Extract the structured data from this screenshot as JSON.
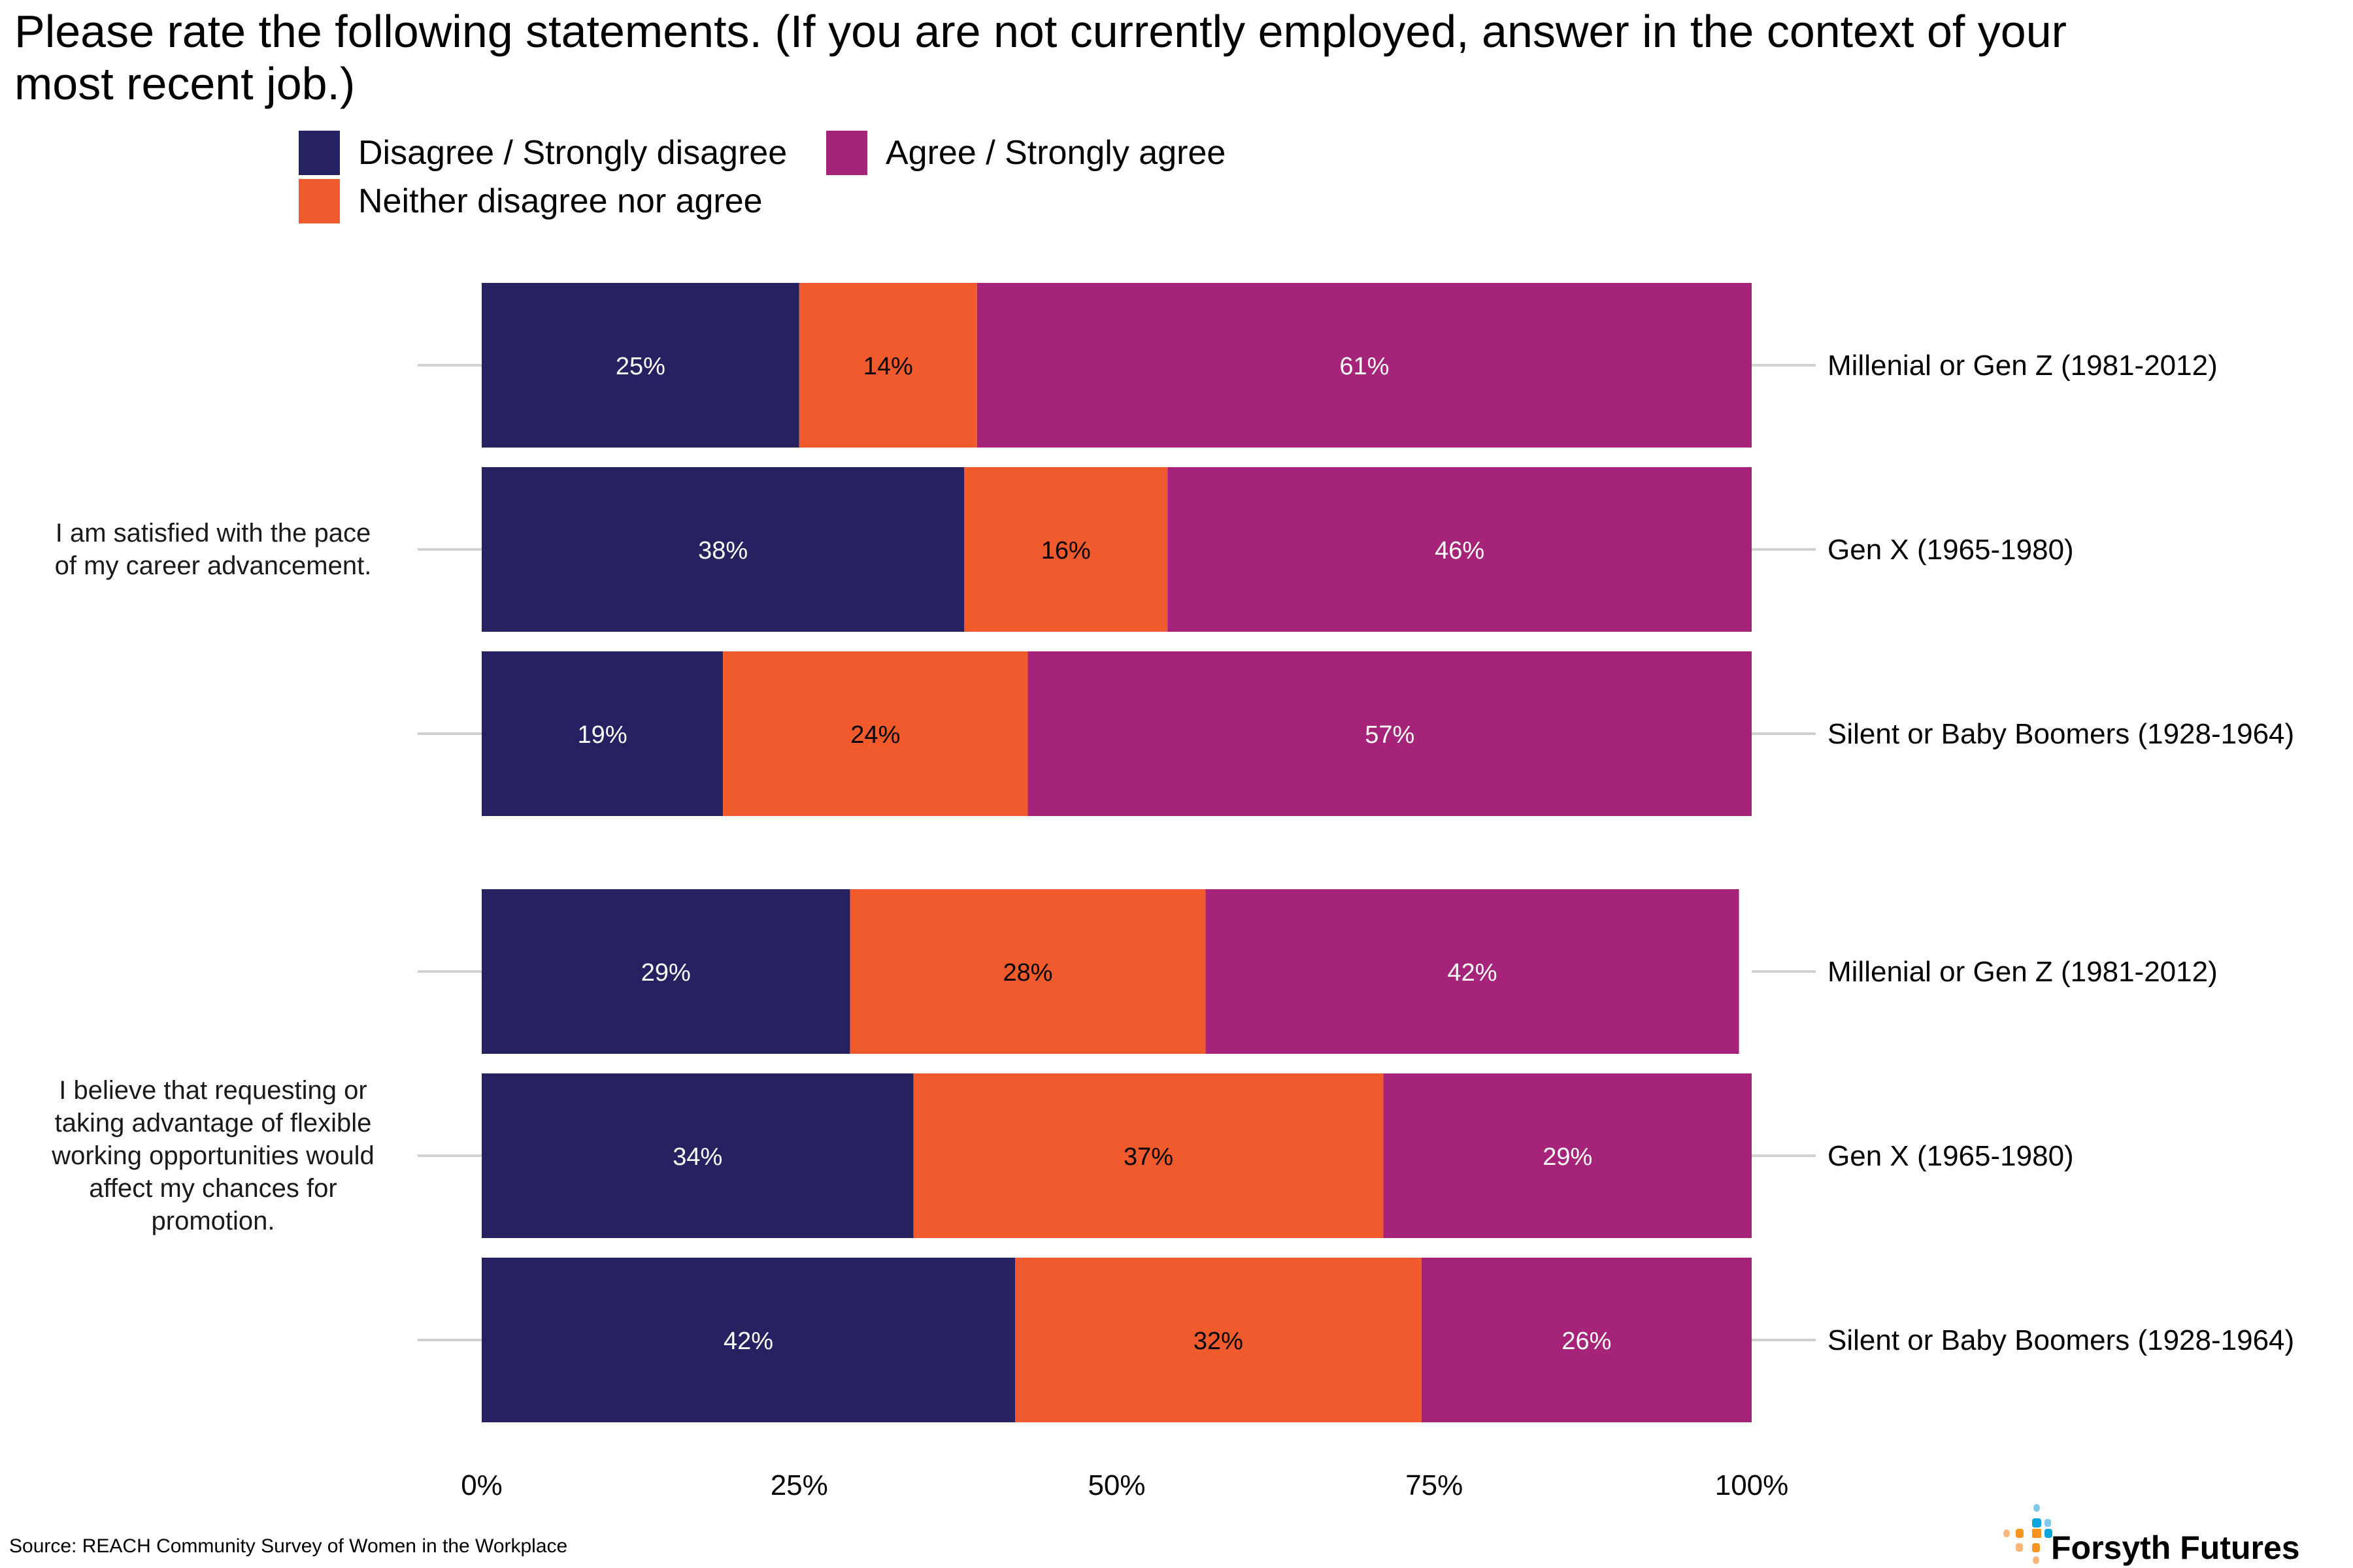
{
  "title": "Please rate the following statements. (If you are not currently employed, answer in the context of your most recent job.)",
  "legend": [
    {
      "key": "disagree",
      "label": "Disagree / Strongly disagree",
      "color": "#262262"
    },
    {
      "key": "agree",
      "label": "Agree / Strongly agree",
      "color": "#A6237A"
    },
    {
      "key": "neither",
      "label": "Neither disagree nor agree",
      "color": "#F05A2C"
    }
  ],
  "source": "Source: REACH Community Survey of Women in the Workplace",
  "logo": {
    "name": "Forsyth Futures",
    "colors": {
      "orange": "#F7941D",
      "light_orange": "#FBB47A",
      "blue": "#0AA6DB",
      "light_blue": "#7FC8EA"
    }
  },
  "chart_data": {
    "type": "bar",
    "orientation": "horizontal",
    "stacked": true,
    "title": "Please rate the following statements. (If you are not currently employed, answer in the context of your most recent job.)",
    "xlabel": "",
    "ylabel": "",
    "xlim": [
      0,
      100
    ],
    "x_ticks": [
      "0%",
      "25%",
      "50%",
      "75%",
      "100%"
    ],
    "x_tick_values": [
      0,
      25,
      50,
      75,
      100
    ],
    "grid": false,
    "legend_position": "top",
    "series_order": [
      "Disagree / Strongly disagree",
      "Neither disagree nor agree",
      "Agree / Strongly agree"
    ],
    "series_colors": {
      "Disagree / Strongly disagree": "#262262",
      "Neither disagree nor agree": "#F05A2C",
      "Agree / Strongly agree": "#A6237A"
    },
    "label_colors": {
      "Disagree / Strongly disagree": "#ffffff",
      "Neither disagree nor agree": "#000000",
      "Agree / Strongly agree": "#ffffff"
    },
    "groups": [
      {
        "statement": "I am satisfied with the pace of my career advancement.",
        "statement_lines": [
          "I am satisfied with the pace",
          "of my career advancement."
        ],
        "categories": [
          "Millenial or Gen Z (1981-2012)",
          "Gen X (1965-1980)",
          "Silent or Baby Boomers (1928-1964)"
        ],
        "series": [
          {
            "name": "Disagree / Strongly disagree",
            "values": [
              25,
              38,
              19
            ]
          },
          {
            "name": "Neither disagree nor agree",
            "values": [
              14,
              16,
              24
            ]
          },
          {
            "name": "Agree / Strongly agree",
            "values": [
              61,
              46,
              57
            ]
          }
        ]
      },
      {
        "statement": "I believe that requesting or taking advantage of flexible working opportunities would affect my chances for promotion.",
        "statement_lines": [
          "I believe that requesting or",
          "taking advantage of flexible",
          "working opportunities would",
          "affect my chances for",
          "promotion."
        ],
        "categories": [
          "Millenial or Gen Z (1981-2012)",
          "Gen X (1965-1980)",
          "Silent or Baby Boomers (1928-1964)"
        ],
        "series": [
          {
            "name": "Disagree / Strongly disagree",
            "values": [
              29,
              34,
              42
            ]
          },
          {
            "name": "Neither disagree nor agree",
            "values": [
              28,
              37,
              32
            ]
          },
          {
            "name": "Agree / Strongly agree",
            "values": [
              42,
              29,
              26
            ]
          }
        ]
      }
    ]
  }
}
